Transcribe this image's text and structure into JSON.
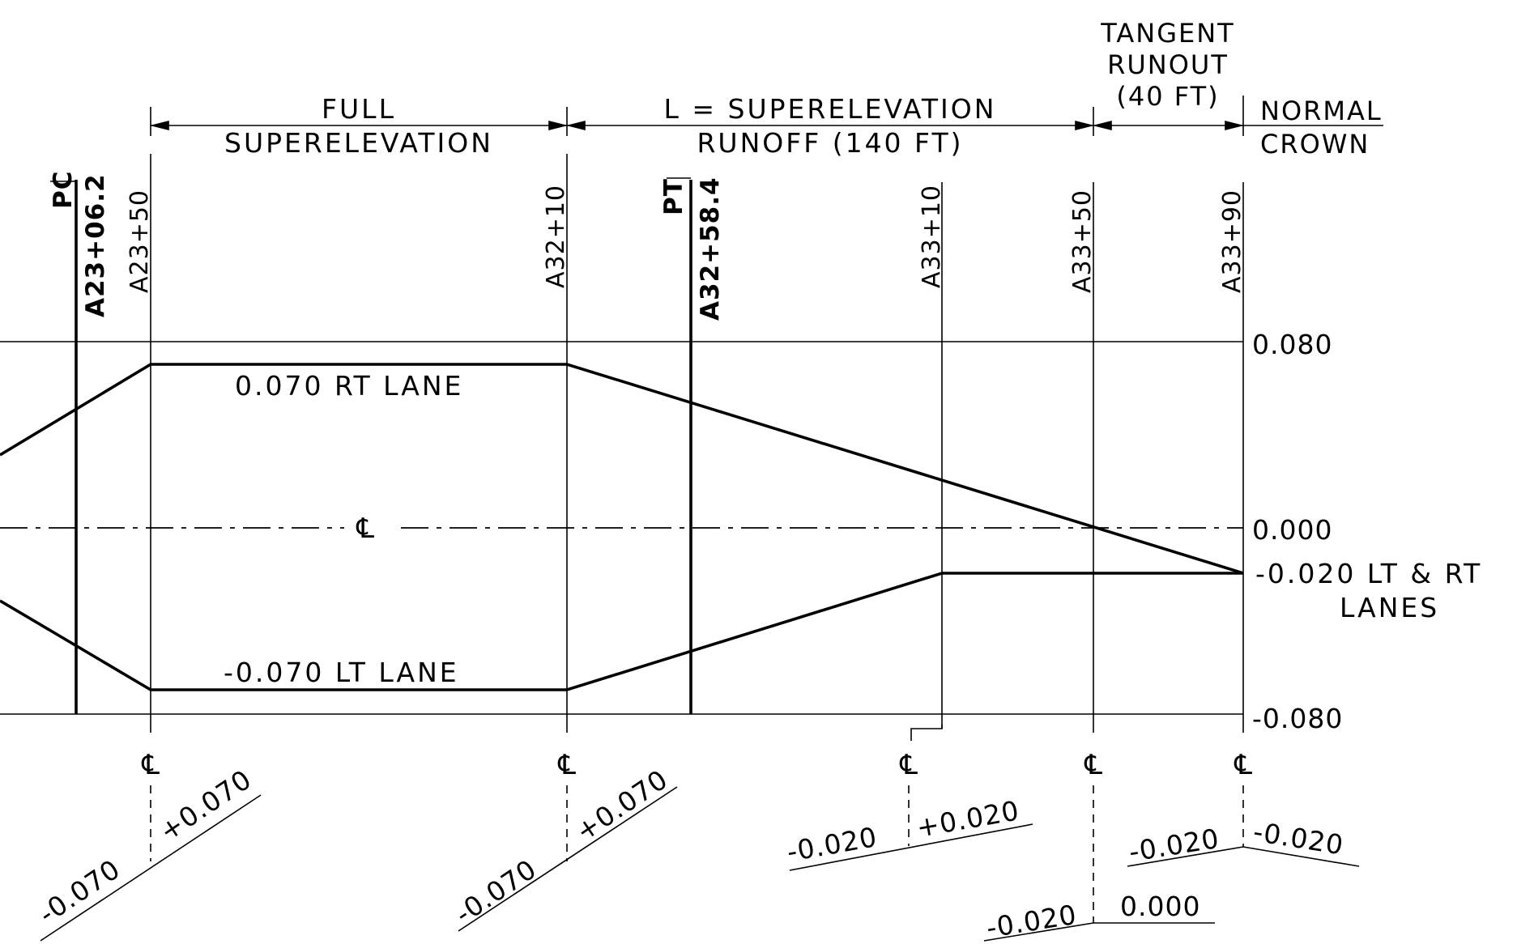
{
  "header": {
    "full_line1": "FULL",
    "full_line2": "SUPERELEVATION",
    "runoff_line1": "L = SUPERELEVATION",
    "runoff_line2": "RUNOFF (140 FT)",
    "tangent_line1": "TANGENT",
    "tangent_line2": "RUNOUT",
    "tangent_line3": "(40 FT)",
    "normal_line1": "NORMAL",
    "normal_line2": "CROWN"
  },
  "stations": {
    "pc_label": "PC",
    "pc_value": "A23+06.2",
    "s1": "A23+50",
    "s2": "A32+10",
    "pt_label": "PT",
    "pt_value": "A32+58.4",
    "s3": "A33+10",
    "s4": "A33+50",
    "s5": "A33+90"
  },
  "scale": {
    "top": "0.080",
    "zero": "0.000",
    "bottom": "-0.080"
  },
  "lines": {
    "rt_lane": "0.070 RT LANE",
    "lt_lane": "-0.070 LT LANE",
    "normal_line1": "-0.020 LT & RT",
    "normal_line2": "LANES",
    "centerline_symbol": "℄"
  },
  "cross_sections": [
    {
      "station": "A23+50",
      "left": "-0.070",
      "right": "+0.070"
    },
    {
      "station": "A32+10",
      "left": "-0.070",
      "right": "+0.070"
    },
    {
      "station": "A33+10",
      "left": "-0.020",
      "right": "+0.020"
    },
    {
      "station": "A33+50",
      "left": "-0.020",
      "right": "0.000"
    },
    {
      "station": "A33+90",
      "left": "-0.020",
      "right": "-0.020"
    }
  ]
}
